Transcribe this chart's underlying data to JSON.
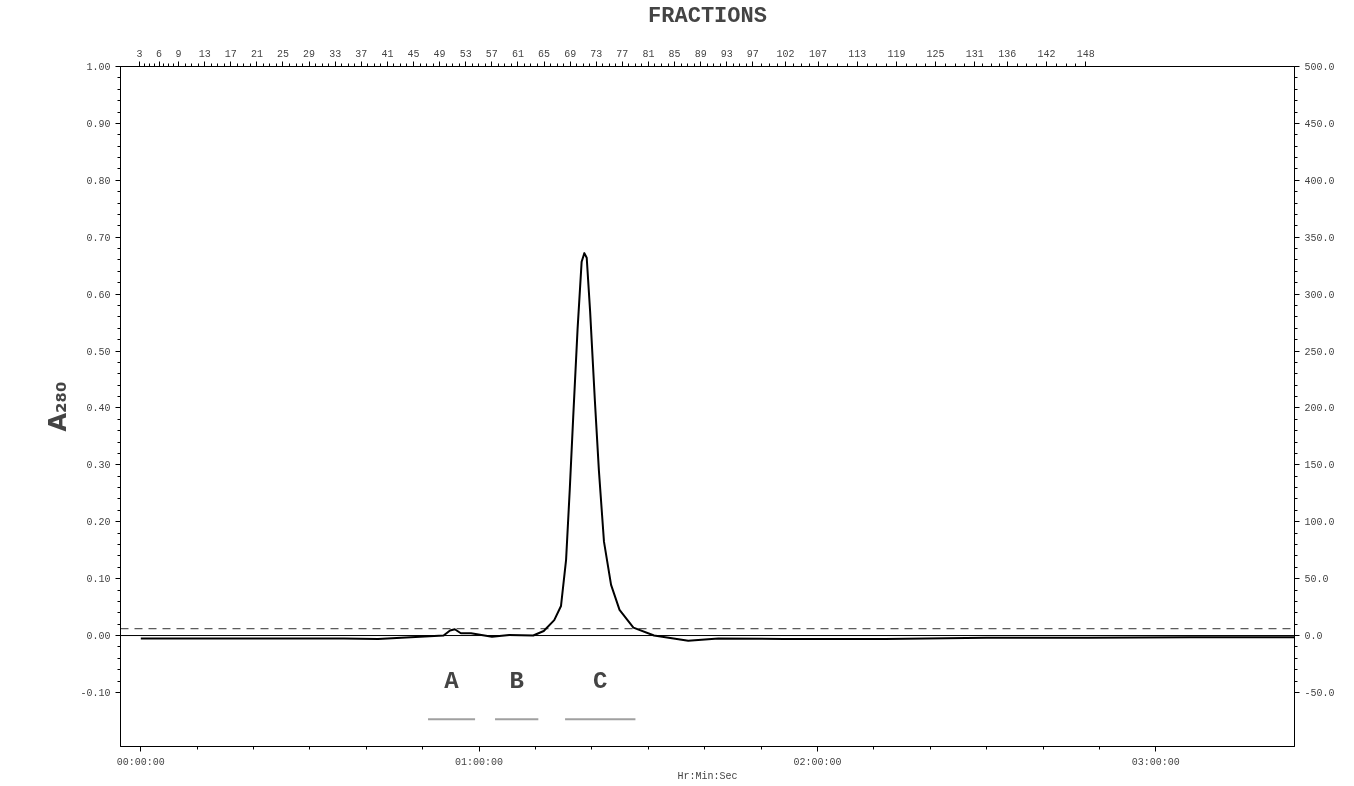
{
  "chart_data": {
    "type": "line",
    "x2label": "FRACTIONS",
    "xlabel": "Hr:Min:Sec",
    "ylabel": "A₂₈₀",
    "x": [
      0.0,
      0.3,
      0.6,
      0.701,
      0.895,
      0.914,
      0.928,
      0.946,
      0.976,
      1.007,
      1.038,
      1.089,
      1.16,
      1.191,
      1.222,
      1.242,
      1.257,
      1.268,
      1.278,
      1.291,
      1.303,
      1.311,
      1.318,
      1.328,
      1.342,
      1.354,
      1.369,
      1.39,
      1.415,
      1.456,
      1.517,
      1.618,
      1.707,
      1.9,
      2.2,
      2.5,
      2.8,
      3.1,
      3.41
    ],
    "series": [
      {
        "name": "A",
        "type": "line",
        "color": "#a0a0a0",
        "x": [
          0.849,
          0.988
        ],
        "values": [
          -0.147,
          -0.147
        ]
      },
      {
        "name": "B",
        "type": "line",
        "color": "#a0a0a0",
        "x": [
          1.047,
          1.175
        ],
        "values": [
          -0.147,
          -0.147
        ]
      },
      {
        "name": "C",
        "type": "line",
        "color": "#a0a0a0",
        "x": [
          1.254,
          1.462
        ],
        "values": [
          -0.147,
          -0.147
        ]
      },
      {
        "color": "#000000",
        "values": [
          -0.005,
          -0.005,
          -0.005,
          -0.006,
          0.0,
          0.009,
          0.011,
          0.004,
          0.004,
          0.001,
          -0.002,
          0.001,
          0.0,
          0.008,
          0.027,
          0.052,
          0.133,
          0.258,
          0.383,
          0.539,
          0.657,
          0.672,
          0.664,
          0.57,
          0.414,
          0.29,
          0.165,
          0.089,
          0.045,
          0.014,
          0.0,
          -0.009,
          -0.005,
          -0.006,
          -0.006,
          -0.004,
          -0.004,
          -0.003,
          -0.003
        ]
      }
    ],
    "xlim": [
      -0.06,
      3.41
    ],
    "xticks": [
      {
        "value": 0,
        "label": "00:00:00"
      },
      {
        "value": 1,
        "label": "01:00:00"
      },
      {
        "value": 2,
        "label": "02:00:00"
      },
      {
        "value": 3,
        "label": "03:00:00"
      }
    ],
    "x2lim": [
      0.1,
      180
    ],
    "x2ticks": [
      3,
      6,
      9,
      13,
      17,
      21,
      25,
      29,
      33,
      37,
      41,
      45,
      49,
      53,
      57,
      61,
      65,
      69,
      73,
      77,
      81,
      85,
      89,
      93,
      97,
      102,
      107,
      113,
      119,
      125,
      131,
      136,
      142,
      148
    ],
    "ylim": [
      -0.195,
      1.0
    ],
    "yticks": [
      {
        "value": -0.1,
        "label": "-0.10"
      },
      {
        "value": 0,
        "label": "0.00"
      },
      {
        "value": 0.1,
        "label": "0.10"
      },
      {
        "value": 0.2,
        "label": "0.20"
      },
      {
        "value": 0.3,
        "label": "0.30"
      },
      {
        "value": 0.4,
        "label": "0.40"
      },
      {
        "value": 0.5,
        "label": "0.50"
      },
      {
        "value": 0.6,
        "label": "0.60"
      },
      {
        "value": 0.7,
        "label": "0.70"
      },
      {
        "value": 0.8,
        "label": "0.80"
      },
      {
        "value": 0.9,
        "label": "0.90"
      },
      {
        "value": 1.0,
        "label": "1.00"
      }
    ],
    "y2lim": [
      -97.5,
      500
    ],
    "y2ticks": [
      {
        "value": -50,
        "label": "-50.0"
      },
      {
        "value": 0,
        "label": "0.0"
      },
      {
        "value": 50,
        "label": "50.0"
      },
      {
        "value": 100,
        "label": "100.0"
      },
      {
        "value": 150,
        "label": "150.0"
      },
      {
        "value": 200,
        "label": "200.0"
      },
      {
        "value": 250,
        "label": "250.0"
      },
      {
        "value": 300,
        "label": "300.0"
      },
      {
        "value": 350,
        "label": "350.0"
      },
      {
        "value": 400,
        "label": "400.0"
      },
      {
        "value": 450,
        "label": "450.0"
      },
      {
        "value": 500,
        "label": "500.0"
      }
    ],
    "ref_lines": [
      {
        "axis": "y",
        "value": 0,
        "line_style": "solid",
        "color": "#000000"
      },
      {
        "axis": "y",
        "value": 0.012,
        "line_style": "dashed",
        "color": "#333333"
      }
    ],
    "grid": false,
    "marker": "none",
    "line_style": "solid"
  }
}
